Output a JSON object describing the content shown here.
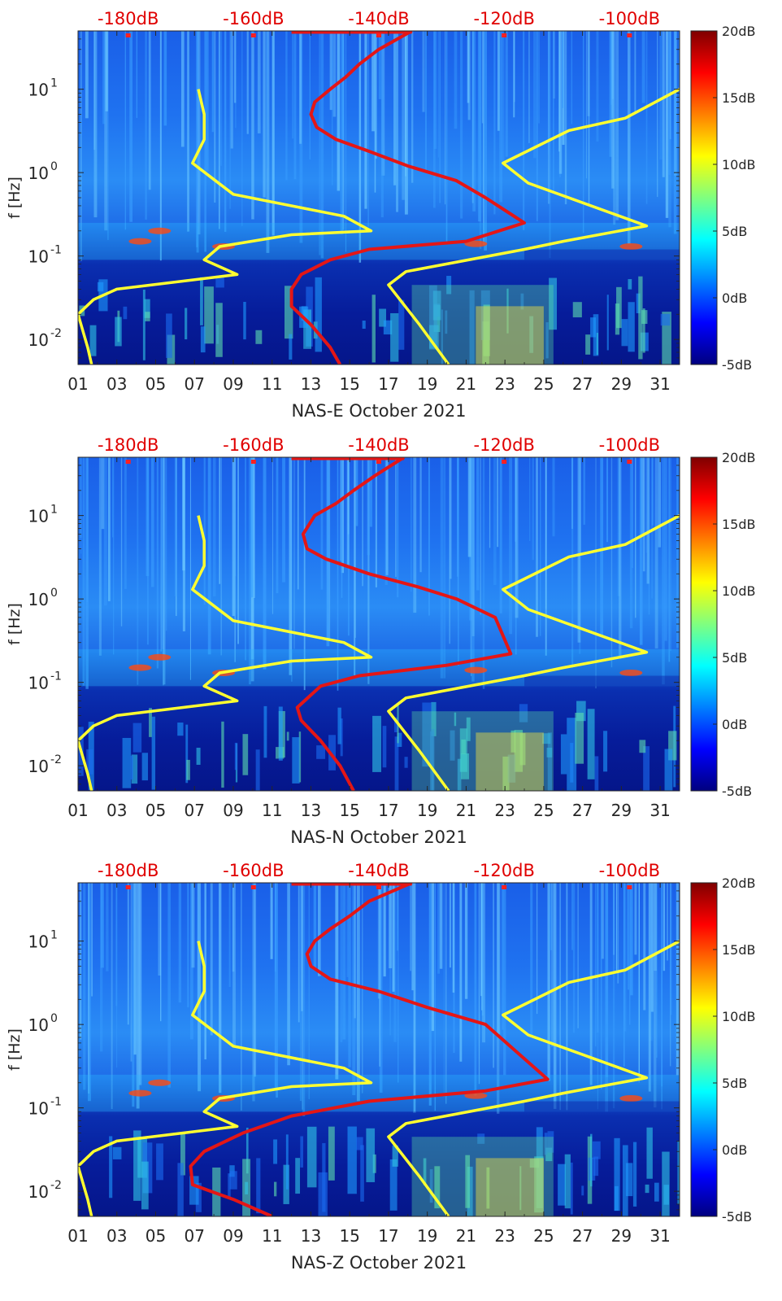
{
  "chart_data": [
    {
      "type": "heatmap",
      "xlabel": "NAS-E October 2021",
      "ylabel": "f [Hz]",
      "x_ticks": [
        "01",
        "03",
        "05",
        "07",
        "09",
        "11",
        "13",
        "15",
        "17",
        "19",
        "21",
        "23",
        "25",
        "27",
        "29",
        "31"
      ],
      "xlim": [
        1,
        32
      ],
      "y_scale": "log",
      "ylim": [
        0.005,
        50
      ],
      "y_ticks": [
        {
          "value": 0.01,
          "base": "10",
          "exp": "-2"
        },
        {
          "value": 0.1,
          "base": "10",
          "exp": "-1"
        },
        {
          "value": 1,
          "base": "10",
          "exp": "0"
        },
        {
          "value": 10,
          "base": "10",
          "exp": "1"
        }
      ],
      "top_ticks": [
        "-180dB",
        "-160dB",
        "-140dB",
        "-120dB",
        "-100dB"
      ],
      "top_lim": [
        -188,
        -92
      ],
      "colorbar": {
        "ticks": [
          "20dB",
          "15dB",
          "10dB",
          "5dB",
          "0dB",
          "-5dB"
        ],
        "range": [
          -5,
          20
        ]
      },
      "series": [
        {
          "color": "#ffff30",
          "x": [
            7.2,
            7.5,
            7.5,
            6.9,
            9.0,
            14.7,
            16.1,
            12.0,
            8.3,
            7.5,
            9.2,
            3.0,
            1.8,
            1.0,
            1.5,
            1.7
          ],
          "y": [
            10,
            5,
            2.5,
            1.3,
            0.55,
            0.3,
            0.2,
            0.18,
            0.13,
            0.09,
            0.06,
            0.04,
            0.03,
            0.02,
            0.008,
            0.005
          ]
        },
        {
          "color": "#ffff30",
          "x": [
            32,
            29.2,
            26.3,
            22.9,
            24.2,
            30.3,
            26.0,
            24.0,
            17.9,
            17.0,
            18.6,
            20.1
          ],
          "y": [
            10,
            4.5,
            3.2,
            1.3,
            0.75,
            0.23,
            0.15,
            0.12,
            0.065,
            0.045,
            0.015,
            0.005
          ]
        },
        {
          "color": "#e41616",
          "x": [
            18.2,
            16.5,
            15.5,
            14.8,
            14.0,
            13.2,
            13.0,
            13.3,
            14.3,
            16.0,
            18.0,
            20.5,
            22.0,
            24.0,
            21.0,
            16.0,
            14.0,
            12.5,
            12.0,
            12.0,
            13.0,
            14.0,
            14.5
          ],
          "y": [
            50,
            30,
            20,
            14,
            10,
            7,
            5,
            3.5,
            2.5,
            1.8,
            1.2,
            0.8,
            0.5,
            0.25,
            0.15,
            0.12,
            0.09,
            0.06,
            0.04,
            0.025,
            0.015,
            0.008,
            0.005
          ]
        }
      ]
    },
    {
      "type": "heatmap",
      "xlabel": "NAS-N October 2021",
      "ylabel": "f [Hz]",
      "x_ticks": [
        "01",
        "03",
        "05",
        "07",
        "09",
        "11",
        "13",
        "15",
        "17",
        "19",
        "21",
        "23",
        "25",
        "27",
        "29",
        "31"
      ],
      "xlim": [
        1,
        32
      ],
      "y_scale": "log",
      "ylim": [
        0.005,
        50
      ],
      "y_ticks": [
        {
          "value": 0.01,
          "base": "10",
          "exp": "-2"
        },
        {
          "value": 0.1,
          "base": "10",
          "exp": "-1"
        },
        {
          "value": 1,
          "base": "10",
          "exp": "0"
        },
        {
          "value": 10,
          "base": "10",
          "exp": "1"
        }
      ],
      "top_ticks": [
        "-180dB",
        "-160dB",
        "-140dB",
        "-120dB",
        "-100dB"
      ],
      "top_lim": [
        -188,
        -92
      ],
      "colorbar": {
        "ticks": [
          "20dB",
          "15dB",
          "10dB",
          "5dB",
          "0dB",
          "-5dB"
        ],
        "range": [
          -5,
          20
        ]
      },
      "series": [
        {
          "color": "#ffff30",
          "x": [
            7.2,
            7.5,
            7.5,
            6.9,
            9.0,
            14.7,
            16.1,
            12.0,
            8.3,
            7.5,
            9.2,
            3.0,
            1.8,
            1.0,
            1.5,
            1.7
          ],
          "y": [
            10,
            5,
            2.5,
            1.3,
            0.55,
            0.3,
            0.2,
            0.18,
            0.13,
            0.09,
            0.06,
            0.04,
            0.03,
            0.02,
            0.008,
            0.005
          ]
        },
        {
          "color": "#ffff30",
          "x": [
            32,
            29.2,
            26.3,
            22.9,
            24.2,
            30.3,
            26.0,
            24.0,
            17.9,
            17.0,
            18.6,
            20.1
          ],
          "y": [
            10,
            4.5,
            3.2,
            1.3,
            0.75,
            0.23,
            0.15,
            0.12,
            0.065,
            0.045,
            0.015,
            0.005
          ]
        },
        {
          "color": "#e41616",
          "x": [
            17.8,
            16.3,
            15.2,
            14.3,
            13.2,
            12.6,
            12.8,
            13.8,
            16.0,
            18.5,
            20.5,
            22.5,
            23.3,
            20.0,
            15.5,
            13.5,
            12.3,
            12.5,
            13.5,
            14.5,
            15.2
          ],
          "y": [
            50,
            30,
            20,
            14,
            10,
            6,
            4,
            3,
            2,
            1.4,
            1,
            0.6,
            0.22,
            0.16,
            0.12,
            0.09,
            0.05,
            0.035,
            0.02,
            0.01,
            0.005
          ]
        }
      ]
    },
    {
      "type": "heatmap",
      "xlabel": "NAS-Z October 2021",
      "ylabel": "f [Hz]",
      "x_ticks": [
        "01",
        "03",
        "05",
        "07",
        "09",
        "11",
        "13",
        "15",
        "17",
        "19",
        "21",
        "23",
        "25",
        "27",
        "29",
        "31"
      ],
      "xlim": [
        1,
        32
      ],
      "y_scale": "log",
      "ylim": [
        0.005,
        50
      ],
      "y_ticks": [
        {
          "value": 0.01,
          "base": "10",
          "exp": "-2"
        },
        {
          "value": 0.1,
          "base": "10",
          "exp": "-1"
        },
        {
          "value": 1,
          "base": "10",
          "exp": "0"
        },
        {
          "value": 10,
          "base": "10",
          "exp": "1"
        }
      ],
      "top_ticks": [
        "-180dB",
        "-160dB",
        "-140dB",
        "-120dB",
        "-100dB"
      ],
      "top_lim": [
        -188,
        -92
      ],
      "colorbar": {
        "ticks": [
          "20dB",
          "15dB",
          "10dB",
          "5dB",
          "0dB",
          "-5dB"
        ],
        "range": [
          -5,
          20
        ]
      },
      "series": [
        {
          "color": "#ffff30",
          "x": [
            7.2,
            7.5,
            7.5,
            6.9,
            9.0,
            14.7,
            16.1,
            12.0,
            8.3,
            7.5,
            9.2,
            3.0,
            1.8,
            1.0,
            1.5,
            1.7
          ],
          "y": [
            10,
            5,
            2.5,
            1.3,
            0.55,
            0.3,
            0.2,
            0.18,
            0.13,
            0.09,
            0.06,
            0.04,
            0.03,
            0.02,
            0.008,
            0.005
          ]
        },
        {
          "color": "#ffff30",
          "x": [
            32,
            29.2,
            26.3,
            22.9,
            24.2,
            30.3,
            26.0,
            24.0,
            17.9,
            17.0,
            18.6,
            20.1
          ],
          "y": [
            10,
            4.5,
            3.2,
            1.3,
            0.75,
            0.23,
            0.15,
            0.12,
            0.065,
            0.045,
            0.015,
            0.005
          ]
        },
        {
          "color": "#e41616",
          "x": [
            18.2,
            16.0,
            15.0,
            14.0,
            13.2,
            12.8,
            13.0,
            14.0,
            16.5,
            19.0,
            22.0,
            25.2,
            22.0,
            16.0,
            12.0,
            9.5,
            7.5,
            6.8,
            6.9,
            9.0,
            11.0
          ],
          "y": [
            50,
            30,
            20,
            14,
            10,
            7,
            5,
            3.5,
            2.5,
            1.6,
            1,
            0.22,
            0.16,
            0.12,
            0.08,
            0.05,
            0.03,
            0.02,
            0.012,
            0.008,
            0.005
          ]
        }
      ]
    }
  ]
}
